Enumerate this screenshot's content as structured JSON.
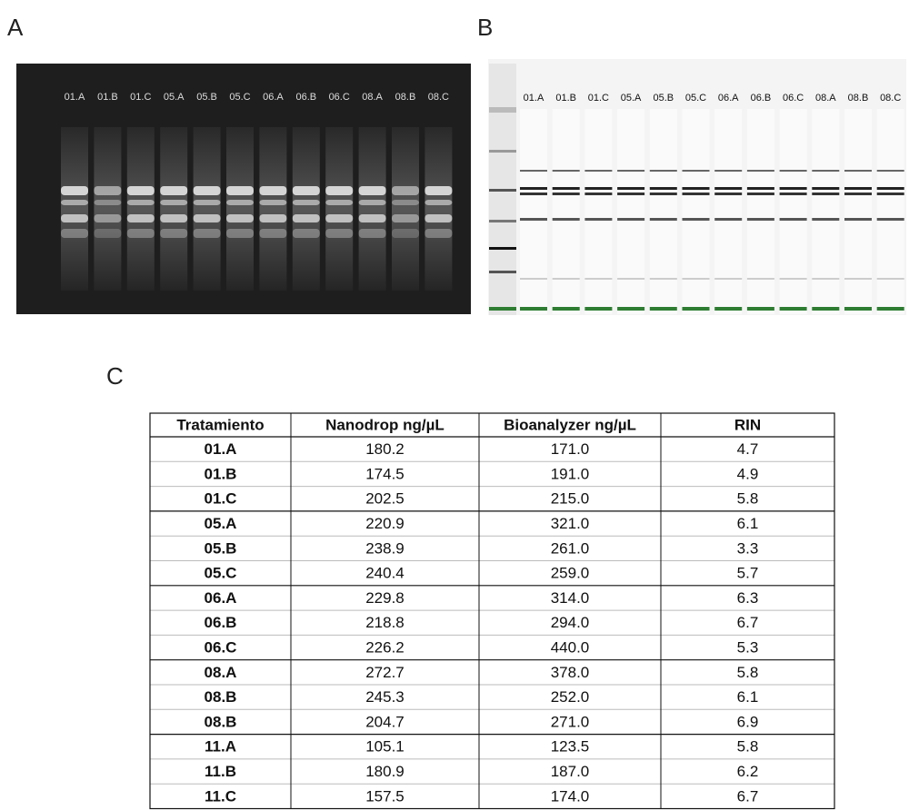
{
  "panels": {
    "a": {
      "label": "A",
      "lanes": [
        "01.A",
        "01.B",
        "01.C",
        "05.A",
        "05.B",
        "05.C",
        "06.A",
        "06.B",
        "06.C",
        "08.A",
        "08.B",
        "08.C"
      ]
    },
    "b": {
      "label": "B",
      "lanes": [
        "01.A",
        "01.B",
        "01.C",
        "05.A",
        "05.B",
        "05.C",
        "06.A",
        "06.B",
        "06.C",
        "08.A",
        "08.B",
        "08.C"
      ]
    },
    "c": {
      "label": "C"
    }
  },
  "table": {
    "header": [
      "Tratamiento",
      "Nanodrop ng/µL",
      "Bioanalyzer ng/µL",
      "RIN"
    ],
    "rows": [
      [
        "01.A",
        "180.2",
        "171.0",
        "4.7"
      ],
      [
        "01.B",
        "174.5",
        "191.0",
        "4.9"
      ],
      [
        "01.C",
        "202.5",
        "215.0",
        "5.8"
      ],
      [
        "05.A",
        "220.9",
        "321.0",
        "6.1"
      ],
      [
        "05.B",
        "238.9",
        "261.0",
        "3.3"
      ],
      [
        "05.C",
        "240.4",
        "259.0",
        "5.7"
      ],
      [
        "06.A",
        "229.8",
        "314.0",
        "6.3"
      ],
      [
        "06.B",
        "218.8",
        "294.0",
        "6.7"
      ],
      [
        "06.C",
        "226.2",
        "440.0",
        "5.3"
      ],
      [
        "08.A",
        "272.7",
        "378.0",
        "5.8"
      ],
      [
        "08.B",
        "245.3",
        "252.0",
        "6.1"
      ],
      [
        "08.B",
        "204.7",
        "271.0",
        "6.9"
      ],
      [
        "11.A",
        "105.1",
        "123.5",
        "5.8"
      ],
      [
        "11.B",
        "180.9",
        "187.0",
        "6.2"
      ],
      [
        "11.C",
        "157.5",
        "174.0",
        "6.7"
      ]
    ]
  }
}
